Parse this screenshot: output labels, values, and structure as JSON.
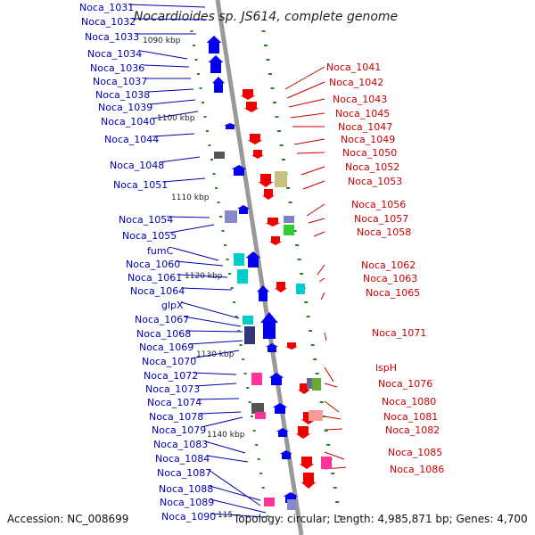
{
  "title": "Nocardioides sp. JS614, complete genome",
  "footer": {
    "accession": "Accession: NC_008699",
    "topology": "Topology: circular; Length: 4,985,871 bp; Genes: 4,700"
  },
  "ticks": [
    "1090 kbp",
    "1100 kbp",
    "1110 kbp",
    "1120 kbp",
    "1130 kbp",
    "1140 kbp",
    "115"
  ],
  "left_labels": [
    "Noca_1031",
    "Noca_1032",
    "Noca_1033",
    "Noca_1034",
    "Noca_1036",
    "Noca_1037",
    "Noca_1038",
    "Noca_1039",
    "Noca_1040",
    "Noca_1044",
    "Noca_1048",
    "Noca_1051",
    "Noca_1054",
    "Noca_1055",
    "fumC",
    "Noca_1060",
    "Noca_1061",
    "Noca_1064",
    "glpX",
    "Noca_1067",
    "Noca_1068",
    "Noca_1069",
    "Noca_1070",
    "Noca_1072",
    "Noca_1073",
    "Noca_1074",
    "Noca_1078",
    "Noca_1079",
    "Noca_1083",
    "Noca_1084",
    "Noca_1087",
    "Noca_1088",
    "Noca_1089",
    "Noca_1090"
  ],
  "right_labels": [
    "Noca_1041",
    "Noca_1042",
    "Noca_1043",
    "Noca_1045",
    "Noca_1047",
    "Noca_1049",
    "Noca_1050",
    "Noca_1052",
    "Noca_1053",
    "Noca_1056",
    "Noca_1057",
    "Noca_1058",
    "Noca_1062",
    "Noca_1063",
    "Noca_1065",
    "Noca_1071",
    "ispH",
    "Noca_1076",
    "Noca_1080",
    "Noca_1081",
    "Noca_1082",
    "Noca_1085",
    "Noca_1086"
  ],
  "colors": {
    "forward": "#0000ee",
    "reverse": "#ee0000",
    "backbone": "#999999",
    "tick": "#228822"
  }
}
